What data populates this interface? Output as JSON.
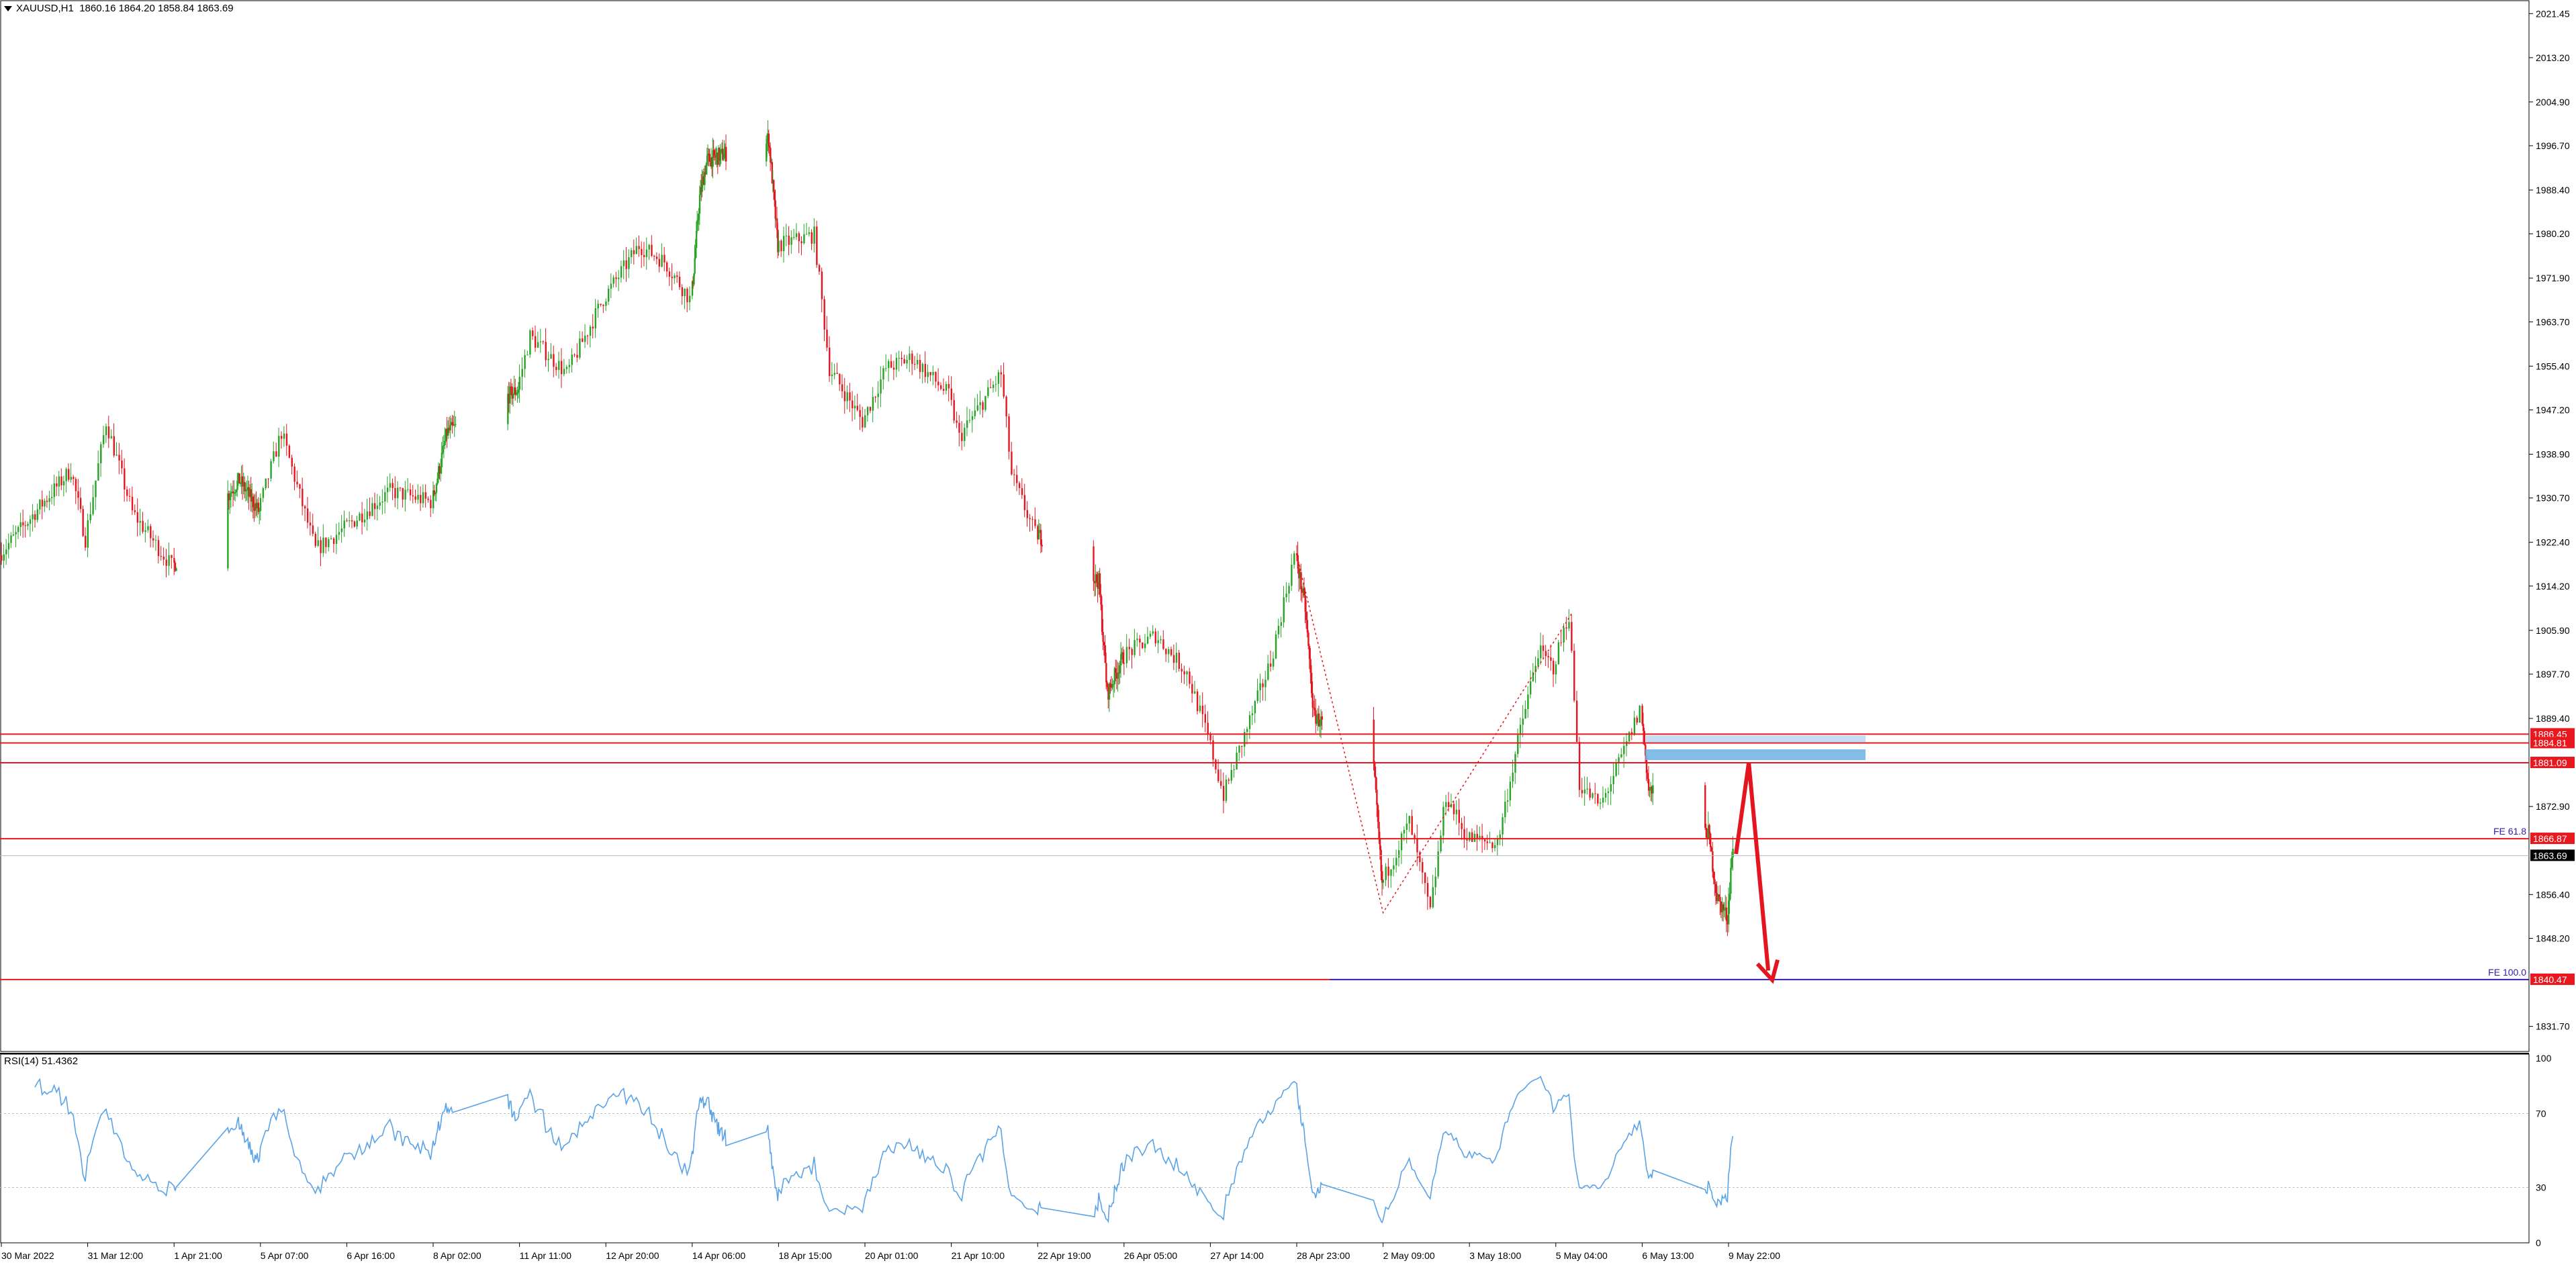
{
  "header": {
    "symbol": "XAUUSD,H1",
    "ohlc": "1860.16 1864.20 1858.84 1863.69"
  },
  "rsi": {
    "label": "RSI(14) 51.4362",
    "levels": [
      70,
      30
    ],
    "axis_ticks": [
      "100",
      "70",
      "30",
      "0"
    ]
  },
  "colors": {
    "bull": "#26a326",
    "bear": "#e3161f",
    "level_line": "#e8181f",
    "rsi_line": "#5aa3e8",
    "zone": "#74b6e6",
    "arrow": "#e3161f",
    "fe_line": "#3a1aa8",
    "current_price_bg": "#000000"
  },
  "price_axis_ticks": [
    "2021.45",
    "2013.20",
    "2004.90",
    "1996.70",
    "1988.40",
    "1980.20",
    "1971.90",
    "1963.70",
    "1955.40",
    "1947.20",
    "1938.90",
    "1930.70",
    "1922.40",
    "1914.20",
    "1905.90",
    "1897.70",
    "1889.40",
    "1872.90",
    "1856.40",
    "1848.20",
    "1831.70"
  ],
  "time_axis_ticks": [
    "30 Mar 2022",
    "31 Mar 12:00",
    "1 Apr 21:00",
    "5 Apr 07:00",
    "6 Apr 16:00",
    "8 Apr 02:00",
    "11 Apr 11:00",
    "12 Apr 20:00",
    "14 Apr 06:00",
    "18 Apr 15:00",
    "20 Apr 01:00",
    "21 Apr 10:00",
    "22 Apr 19:00",
    "26 Apr 05:00",
    "27 Apr 14:00",
    "28 Apr 23:00",
    "2 May 09:00",
    "3 May 18:00",
    "5 May 04:00",
    "6 May 13:00",
    "9 May 22:00"
  ],
  "price_labels": [
    {
      "value": 1886.45,
      "text": "1886.45"
    },
    {
      "value": 1884.81,
      "text": "1884.81"
    },
    {
      "value": 1881.09,
      "text": "1881.09"
    },
    {
      "value": 1866.87,
      "text": "1866.87"
    },
    {
      "value": 1840.47,
      "text": "1840.47"
    }
  ],
  "current_price": {
    "value": 1863.69,
    "text": "1863.69"
  },
  "fe_labels": [
    {
      "value": 1866.87,
      "text": "FE 61.8"
    },
    {
      "value": 1840.47,
      "text": "FE 100.0"
    }
  ],
  "chart_data": {
    "type": "candlestick",
    "symbol": "XAUUSD",
    "timeframe": "H1",
    "ylim": [
      1827,
      2024
    ],
    "x_range": [
      "30 Mar 2022",
      "10 May 2022"
    ],
    "waypoints": [
      [
        "30 Mar 2022",
        1920
      ],
      [
        "31 Mar 06:00",
        1936
      ],
      [
        "31 Mar 12:00",
        1923
      ],
      [
        "31 Mar 20:00",
        1945
      ],
      [
        "1 Apr 06:00",
        1928
      ],
      [
        "1 Apr 21:00",
        1918
      ],
      [
        "4 Apr 12:00",
        1934
      ],
      [
        "5 Apr 07:00",
        1928
      ],
      [
        "5 Apr 16:00",
        1943
      ],
      [
        "6 Apr 05:00",
        1921
      ],
      [
        "6 Apr 16:00",
        1925
      ],
      [
        "7 Apr 10:00",
        1932
      ],
      [
        "8 Apr 02:00",
        1930
      ],
      [
        "8 Apr 16:00",
        1943
      ],
      [
        "11 Apr 11:00",
        1951
      ],
      [
        "11 Apr 16:00",
        1961
      ],
      [
        "12 Apr 06:00",
        1954
      ],
      [
        "12 Apr 20:00",
        1968
      ],
      [
        "13 Apr 10:00",
        1978
      ],
      [
        "13 Apr 20:00",
        1975
      ],
      [
        "14 Apr 06:00",
        1968
      ],
      [
        "14 Apr 16:00",
        1987
      ],
      [
        "15 Apr 01:00",
        1994
      ],
      [
        "18 Apr 04:00",
        1998
      ],
      [
        "18 Apr 15:00",
        1978
      ],
      [
        "19 Apr 06:00",
        1980
      ],
      [
        "19 Apr 12:00",
        1955
      ],
      [
        "20 Apr 01:00",
        1945
      ],
      [
        "20 Apr 10:00",
        1955
      ],
      [
        "20 Apr 20:00",
        1957
      ],
      [
        "21 Apr 10:00",
        1950
      ],
      [
        "21 Apr 14:00",
        1942
      ],
      [
        "22 Apr 06:00",
        1954
      ],
      [
        "22 Apr 10:00",
        1935
      ],
      [
        "22 Apr 19:00",
        1924
      ],
      [
        "25 Apr 06:00",
        1915
      ],
      [
        "25 Apr 14:00",
        1894
      ],
      [
        "26 Apr 05:00",
        1901
      ],
      [
        "26 Apr 18:00",
        1905
      ],
      [
        "27 Apr 06:00",
        1898
      ],
      [
        "27 Apr 14:00",
        1886
      ],
      [
        "27 Apr 20:00",
        1875
      ],
      [
        "28 Apr 06:00",
        1889
      ],
      [
        "28 Apr 14:00",
        1900
      ],
      [
        "28 Apr 23:00",
        1920
      ],
      [
        "29 Apr 08:00",
        1910
      ],
      [
        "29 Apr 16:00",
        1890
      ],
      [
        "2 May 01:00",
        1880
      ],
      [
        "2 May 09:00",
        1858
      ],
      [
        "2 May 20:00",
        1870
      ],
      [
        "3 May 04:00",
        1853
      ],
      [
        "3 May 10:00",
        1875
      ],
      [
        "3 May 18:00",
        1867
      ],
      [
        "4 May 06:00",
        1866
      ],
      [
        "4 May 14:00",
        1885
      ],
      [
        "4 May 22:00",
        1902
      ],
      [
        "5 May 04:00",
        1899
      ],
      [
        "5 May 10:00",
        1909
      ],
      [
        "5 May 14:00",
        1877
      ],
      [
        "5 May 22:00",
        1873
      ],
      [
        "6 May 06:00",
        1882
      ],
      [
        "6 May 13:00",
        1891
      ],
      [
        "6 May 20:00",
        1876
      ],
      [
        "9 May 04:00",
        1868
      ],
      [
        "9 May 12:00",
        1856
      ],
      [
        "9 May 22:00",
        1852
      ],
      [
        "10 May 02:00",
        1864
      ]
    ],
    "horizontal_levels": [
      1886.45,
      1884.81,
      1881.09,
      1866.87,
      1840.47
    ],
    "resistance_zone": [
      1881.6,
      1883.6
    ],
    "projection_arrow": [
      [
        "10 May 05:00",
        1864
      ],
      [
        "10 May 17:00",
        1881.1
      ],
      [
        "11 May 15:00",
        1840.4
      ]
    ],
    "fibonacci_expansion": [
      [
        "28 Apr 23:00",
        1920
      ],
      [
        "2 May 09:00",
        1853
      ],
      [
        "5 May 10:00",
        1909
      ]
    ],
    "rsi_period": 14,
    "rsi_last": 51.4362,
    "rsi_ylim": [
      0,
      100
    ]
  }
}
